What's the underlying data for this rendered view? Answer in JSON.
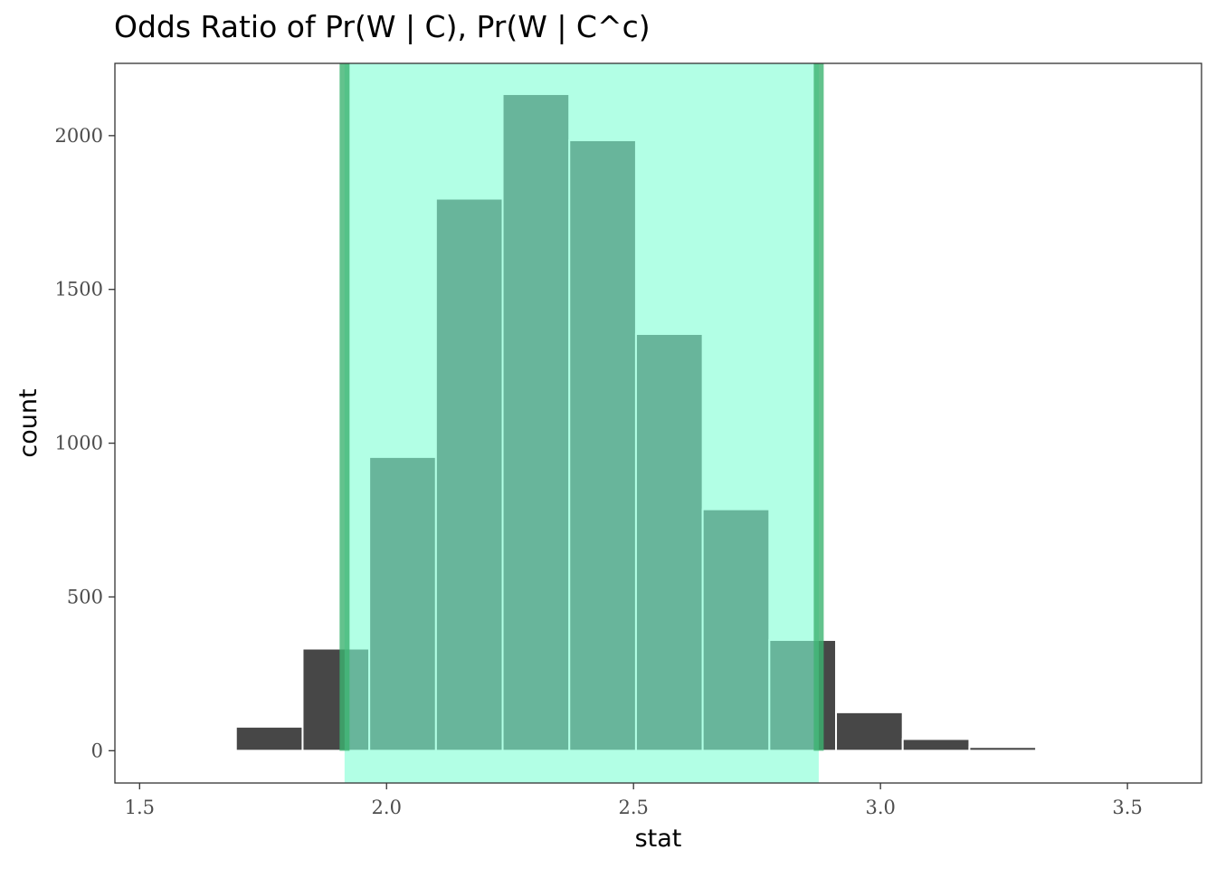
{
  "chart_data": {
    "type": "bar",
    "title": "Odds Ratio of Pr(W | C), Pr(W | C^c)",
    "xlabel": "stat",
    "ylabel": "count",
    "xlim": [
      1.45,
      3.65
    ],
    "ylim": [
      -105,
      2235
    ],
    "x_ticks": [
      {
        "value": 1.5,
        "label": "1.5"
      },
      {
        "value": 2.0,
        "label": "2.0"
      },
      {
        "value": 2.5,
        "label": "2.5"
      },
      {
        "value": 3.0,
        "label": "3.0"
      },
      {
        "value": 3.5,
        "label": "3.5"
      }
    ],
    "y_ticks": [
      {
        "value": 0,
        "label": "0"
      },
      {
        "value": 500,
        "label": "500"
      },
      {
        "value": 1000,
        "label": "1000"
      },
      {
        "value": 1500,
        "label": "1500"
      },
      {
        "value": 2000,
        "label": "2000"
      }
    ],
    "bins": [
      {
        "x0": 1.695,
        "x1": 1.83,
        "count": 78
      },
      {
        "x0": 1.83,
        "x1": 1.965,
        "count": 332
      },
      {
        "x0": 1.965,
        "x1": 2.1,
        "count": 955
      },
      {
        "x0": 2.1,
        "x1": 2.235,
        "count": 1795
      },
      {
        "x0": 2.235,
        "x1": 2.37,
        "count": 2135
      },
      {
        "x0": 2.37,
        "x1": 2.505,
        "count": 1985
      },
      {
        "x0": 2.505,
        "x1": 2.64,
        "count": 1355
      },
      {
        "x0": 2.64,
        "x1": 2.775,
        "count": 785
      },
      {
        "x0": 2.775,
        "x1": 2.91,
        "count": 360
      },
      {
        "x0": 2.91,
        "x1": 3.045,
        "count": 125
      },
      {
        "x0": 3.045,
        "x1": 3.18,
        "count": 38
      },
      {
        "x0": 3.18,
        "x1": 3.315,
        "count": 12
      }
    ],
    "confidence_interval": {
      "lower": 1.915,
      "upper": 2.875
    },
    "colors": {
      "bar_fill": "#474747",
      "bar_stroke": "#ffffff",
      "ci_fill": "#7fffd4",
      "ci_edge": "#3cb371",
      "panel_border": "#333333",
      "tick_color": "#333333"
    },
    "grid": false
  }
}
